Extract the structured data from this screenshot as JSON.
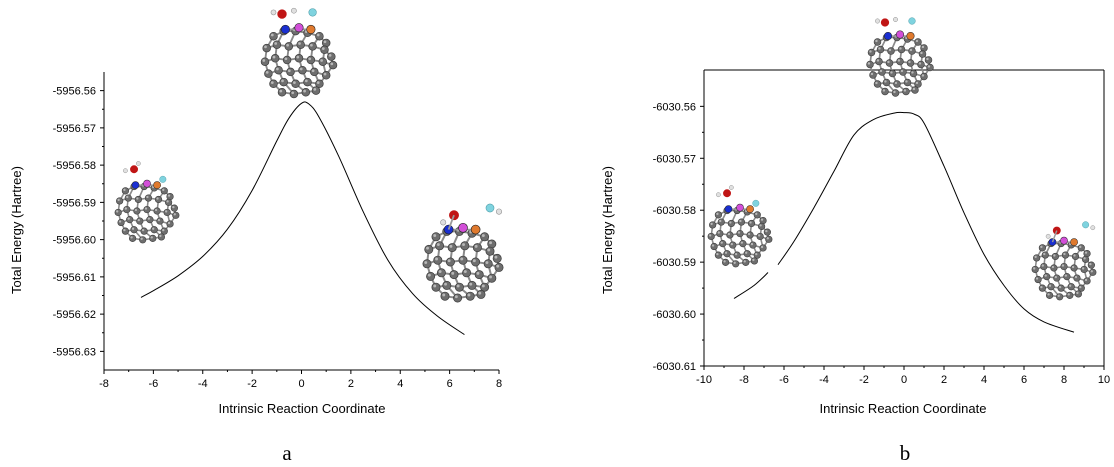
{
  "chart_data": [
    {
      "type": "line",
      "panel_label": "a",
      "xlabel": "Intrinsic Reaction Coordinate",
      "ylabel": "Total Energy (Hartree)",
      "xlim": [
        -8,
        8
      ],
      "ylim": [
        -5956.635,
        -5956.555
      ],
      "x_ticks": [
        -8,
        -6,
        -4,
        -2,
        0,
        2,
        4,
        6,
        8
      ],
      "y_ticks": [
        -5956.63,
        -5956.62,
        -5956.61,
        -5956.6,
        -5956.59,
        -5956.58,
        -5956.57,
        -5956.56
      ],
      "x_tick_labels": [
        "-8",
        "-6",
        "-4",
        "-2",
        "0",
        "2",
        "4",
        "6",
        "8"
      ],
      "y_tick_labels": [
        "-5956.63",
        "-5956.62",
        "-5956.61",
        "-5956.60",
        "-5956.59",
        "-5956.58",
        "-5956.57",
        "-5956.56"
      ],
      "axes": "left-bottom",
      "grid": false,
      "series": [
        {
          "color": "#000000",
          "segments": [
            [
              [
                -6.5,
                -5956.6155
              ],
              [
                -6.0,
                -5956.6137
              ],
              [
                -5.0,
                -5956.6097
              ],
              [
                -4.0,
                -5956.6045
              ],
              [
                -3.0,
                -5956.5972
              ],
              [
                -2.0,
                -5956.5868
              ],
              [
                -1.0,
                -5956.5735
              ],
              [
                -0.5,
                -5956.5673
              ],
              [
                0.0,
                -5956.5634
              ],
              [
                0.3,
                -5956.5636
              ],
              [
                0.7,
                -5956.567
              ],
              [
                1.5,
                -5956.5775
              ],
              [
                2.5,
                -5956.5925
              ],
              [
                3.5,
                -5956.6055
              ],
              [
                4.5,
                -5956.6145
              ],
              [
                5.5,
                -5956.6205
              ],
              [
                6.6,
                -5956.6255
              ]
            ]
          ]
        }
      ],
      "structures": [
        {
          "position": "left",
          "role": "reactant"
        },
        {
          "position": "top",
          "role": "transition state"
        },
        {
          "position": "right",
          "role": "product"
        }
      ]
    },
    {
      "type": "line",
      "panel_label": "b",
      "xlabel": "Intrinsic Reaction Coordinate",
      "ylabel": "Total Energy (Hartree)",
      "xlim": [
        -10,
        10
      ],
      "ylim": [
        -6030.61,
        -6030.553
      ],
      "x_ticks": [
        -10,
        -8,
        -6,
        -4,
        -2,
        0,
        2,
        4,
        6,
        8,
        10
      ],
      "y_ticks": [
        -6030.61,
        -6030.6,
        -6030.59,
        -6030.58,
        -6030.57,
        -6030.56
      ],
      "x_tick_labels": [
        "-10",
        "-8",
        "-6",
        "-4",
        "-2",
        "0",
        "2",
        "4",
        "6",
        "8",
        "10"
      ],
      "y_tick_labels": [
        "-6030.61",
        "-6030.60",
        "-6030.59",
        "-6030.58",
        "-6030.57",
        "-6030.56"
      ],
      "axes": "box",
      "grid": false,
      "series": [
        {
          "color": "#000000",
          "segments": [
            [
              [
                -8.5,
                -6030.597
              ],
              [
                -7.5,
                -6030.5945
              ],
              [
                -6.8,
                -6030.592
              ]
            ],
            [
              [
                -6.3,
                -6030.5905
              ],
              [
                -5.5,
                -6030.586
              ],
              [
                -4.5,
                -6030.5795
              ],
              [
                -3.5,
                -6030.5725
              ],
              [
                -2.5,
                -6030.5655
              ],
              [
                -1.5,
                -6030.5625
              ],
              [
                -0.5,
                -6030.5613
              ],
              [
                0.0,
                -6030.5612
              ],
              [
                0.5,
                -6030.5615
              ],
              [
                1.0,
                -6030.5632
              ],
              [
                2.0,
                -6030.5715
              ],
              [
                3.0,
                -6030.5805
              ],
              [
                4.0,
                -6030.5885
              ],
              [
                5.0,
                -6030.5945
              ],
              [
                6.0,
                -6030.599
              ],
              [
                7.0,
                -6030.6015
              ],
              [
                8.5,
                -6030.6035
              ]
            ]
          ]
        }
      ],
      "structures": [
        {
          "position": "left",
          "role": "reactant"
        },
        {
          "position": "top",
          "role": "transition state"
        },
        {
          "position": "right",
          "role": "product"
        }
      ]
    }
  ]
}
